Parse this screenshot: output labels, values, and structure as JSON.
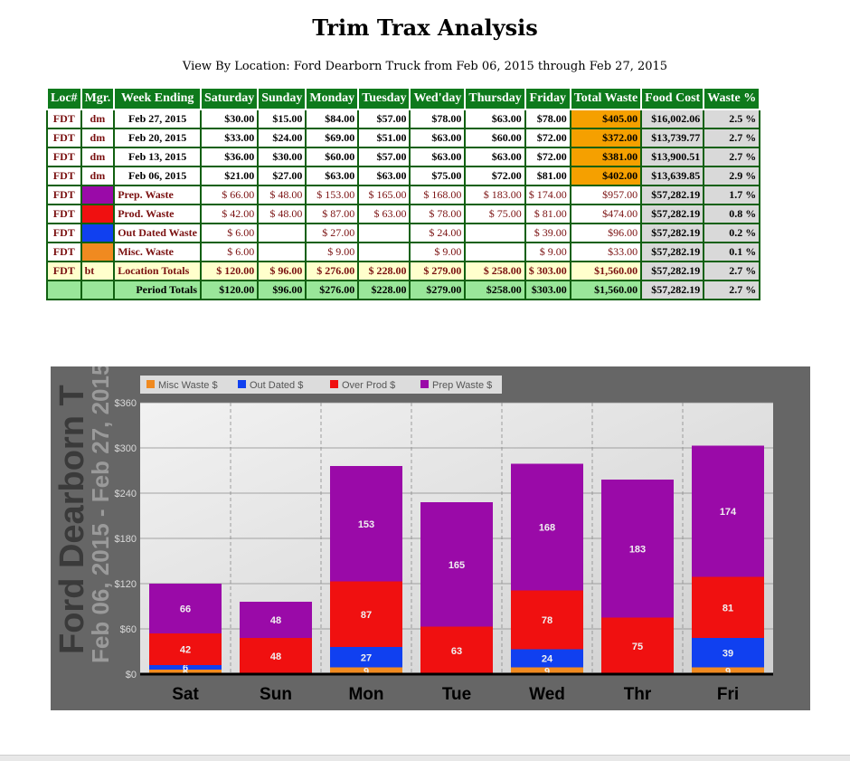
{
  "page": {
    "title": "Trim Trax Analysis",
    "subtitle": "View By Location: Ford Dearborn Truck from Feb 06, 2015 through Feb 27, 2015"
  },
  "table": {
    "headers": [
      "Loc#",
      "Mgr.",
      "Week Ending",
      "Saturday",
      "Sunday",
      "Monday",
      "Tuesday",
      "Wed'day",
      "Thursday",
      "Friday",
      "Total Waste",
      "Food Cost",
      "Waste %"
    ],
    "weeks": [
      {
        "loc": "FDT",
        "mgr": "dm",
        "week": "Feb 27, 2015",
        "days": [
          "$30.00",
          "$15.00",
          "$84.00",
          "$57.00",
          "$78.00",
          "$63.00",
          "$78.00"
        ],
        "total": "$405.00",
        "food": "$16,002.06",
        "pct": "2.5 %"
      },
      {
        "loc": "FDT",
        "mgr": "dm",
        "week": "Feb 20, 2015",
        "days": [
          "$33.00",
          "$24.00",
          "$69.00",
          "$51.00",
          "$63.00",
          "$60.00",
          "$72.00"
        ],
        "total": "$372.00",
        "food": "$13,739.77",
        "pct": "2.7 %"
      },
      {
        "loc": "FDT",
        "mgr": "dm",
        "week": "Feb 13, 2015",
        "days": [
          "$36.00",
          "$30.00",
          "$60.00",
          "$57.00",
          "$63.00",
          "$63.00",
          "$72.00"
        ],
        "total": "$381.00",
        "food": "$13,900.51",
        "pct": "2.7 %"
      },
      {
        "loc": "FDT",
        "mgr": "dm",
        "week": "Feb 06, 2015",
        "days": [
          "$21.00",
          "$27.00",
          "$63.00",
          "$63.00",
          "$75.00",
          "$72.00",
          "$81.00"
        ],
        "total": "$402.00",
        "food": "$13,639.85",
        "pct": "2.9 %"
      }
    ],
    "categories": [
      {
        "loc": "FDT",
        "color": "#9a0aa8",
        "label": "Prep. Waste",
        "days": [
          "$ 66.00",
          "$ 48.00",
          "$ 153.00",
          "$ 165.00",
          "$ 168.00",
          "$ 183.00",
          "$ 174.00"
        ],
        "total": "$957.00",
        "food": "$57,282.19",
        "pct": "1.7 %"
      },
      {
        "loc": "FDT",
        "color": "#f01010",
        "label": "Prod. Waste",
        "days": [
          "$ 42.00",
          "$ 48.00",
          "$ 87.00",
          "$ 63.00",
          "$ 78.00",
          "$ 75.00",
          "$ 81.00"
        ],
        "total": "$474.00",
        "food": "$57,282.19",
        "pct": "0.8 %"
      },
      {
        "loc": "FDT",
        "color": "#1040f0",
        "label": "Out Dated Waste",
        "days": [
          "$ 6.00",
          "",
          "$ 27.00",
          "",
          "$ 24.00",
          "",
          "$ 39.00"
        ],
        "total": "$96.00",
        "food": "$57,282.19",
        "pct": "0.2 %"
      },
      {
        "loc": "FDT",
        "color": "#f08a20",
        "label": "Misc. Waste",
        "days": [
          "$ 6.00",
          "",
          "$ 9.00",
          "",
          "$ 9.00",
          "",
          "$ 9.00"
        ],
        "total": "$33.00",
        "food": "$57,282.19",
        "pct": "0.1 %"
      }
    ],
    "location_totals": {
      "loc": "FDT",
      "mgr": "bt",
      "label": "Location Totals",
      "days": [
        "$ 120.00",
        "$ 96.00",
        "$ 276.00",
        "$ 228.00",
        "$ 279.00",
        "$ 258.00",
        "$ 303.00"
      ],
      "total": "$1,560.00",
      "food": "$57,282.19",
      "pct": "2.7 %"
    },
    "period_totals": {
      "label": "Period Totals",
      "days": [
        "$120.00",
        "$96.00",
        "$276.00",
        "$228.00",
        "$279.00",
        "$258.00",
        "$303.00"
      ],
      "total": "$1,560.00",
      "food": "$57,282.19",
      "pct": "2.7 %"
    }
  },
  "chart_data": {
    "type": "bar",
    "stacked": true,
    "watermark_title": "Ford Dearborn T",
    "watermark_subtitle": "Feb 06, 2015 - Feb 27, 2015",
    "categories": [
      "Sat",
      "Sun",
      "Mon",
      "Tue",
      "Wed",
      "Thr",
      "Fri"
    ],
    "series": [
      {
        "name": "Misc Waste $",
        "color": "#f08a20",
        "values": [
          6,
          0,
          9,
          0,
          9,
          0,
          9
        ]
      },
      {
        "name": "Out Dated $",
        "color": "#1040f0",
        "values": [
          6,
          0,
          27,
          0,
          24,
          0,
          39
        ]
      },
      {
        "name": "Over Prod $",
        "color": "#f01010",
        "values": [
          42,
          48,
          87,
          63,
          78,
          75,
          81
        ]
      },
      {
        "name": "Prep Waste $",
        "color": "#9a0aa8",
        "values": [
          66,
          48,
          153,
          165,
          168,
          183,
          174
        ]
      }
    ],
    "y_ticks": [
      "$0",
      "$60",
      "$120",
      "$180",
      "$240",
      "$300",
      "$360"
    ],
    "ylim": [
      0,
      360
    ],
    "legend_position": "top-left",
    "grid": true
  }
}
